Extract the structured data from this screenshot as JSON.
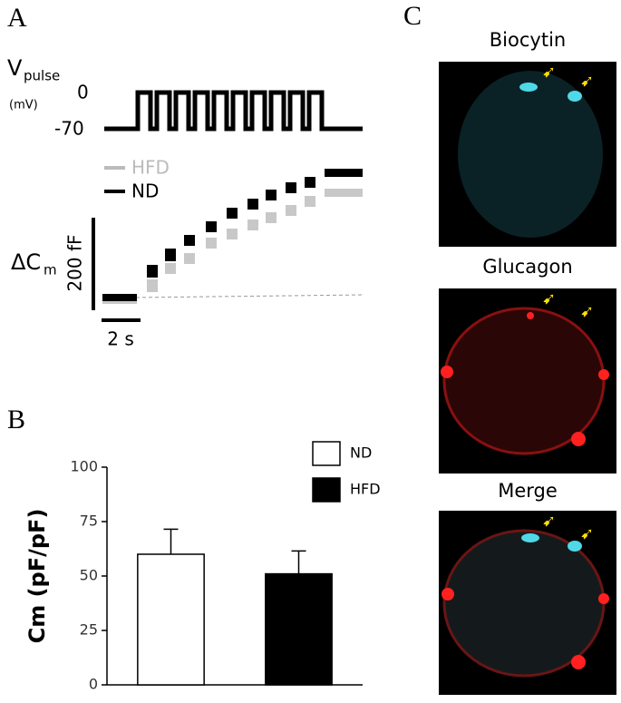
{
  "panels": {
    "a": "A",
    "b": "B",
    "c": "C"
  },
  "panel_a": {
    "vpulse": "V",
    "vpulse_sub": "pulse",
    "vpulse_unit": "(mV)",
    "v_high": "0",
    "v_low": "-70",
    "legend": [
      "HFD",
      "ND"
    ],
    "dcm": "ΔC",
    "dcm_sub": "m",
    "scale_y": "200 fF",
    "scale_x": "2 s"
  },
  "panel_c": {
    "images": [
      "Biocytin",
      "Glucagon",
      "Merge"
    ]
  },
  "chart_data": {
    "type": "bar",
    "ylabel": "Cm (pF/pF)",
    "series": [
      {
        "name": "ND",
        "color": "#ffffff",
        "values": [
          60
        ],
        "errors": [
          11.5
        ]
      },
      {
        "name": "HFD",
        "color": "#000000",
        "values": [
          51
        ],
        "errors": [
          10.5
        ]
      }
    ],
    "ylim": [
      0,
      100
    ],
    "yticks": [
      0,
      25,
      50,
      75,
      100
    ]
  }
}
